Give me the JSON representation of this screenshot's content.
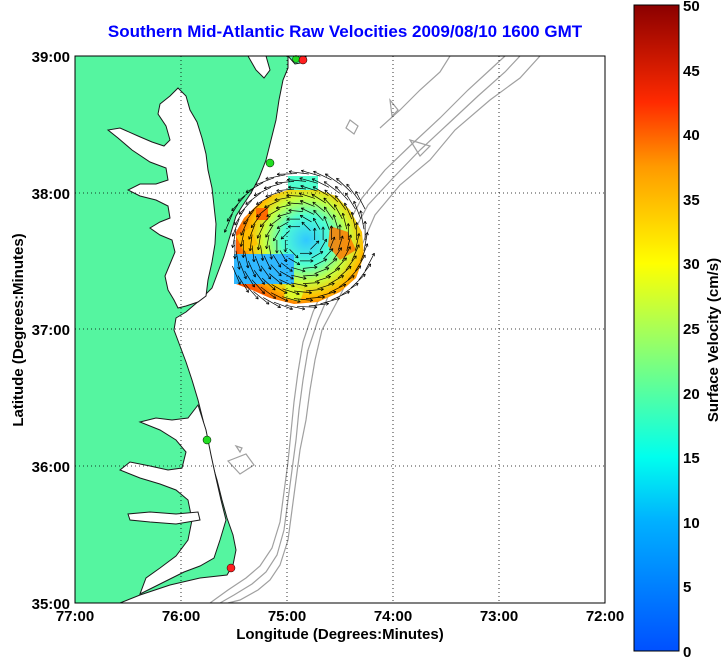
{
  "title": "Southern Mid-Atlantic Raw Velocities 2009/08/10 1600 GMT",
  "x_axis": {
    "label": "Longitude (Degrees:Minutes)",
    "ticks": [
      "77:00",
      "76:00",
      "75:00",
      "74:00",
      "73:00",
      "72:00"
    ]
  },
  "y_axis": {
    "label": "Latitude (Degrees:Minutes)",
    "ticks": [
      "39:00",
      "38:00",
      "37:00",
      "36:00",
      "35:00"
    ]
  },
  "colorbar": {
    "label": "Surface Velocity (cm/s)",
    "ticks": [
      "50",
      "45",
      "40",
      "35",
      "30",
      "25",
      "20",
      "15",
      "10",
      "5",
      "0"
    ],
    "min": 0,
    "max": 50
  },
  "colors": {
    "land": "#55f5a0",
    "water": "#ffffff",
    "bathymetry": "#a0a0a0",
    "title": "#0000ff",
    "station_green": "#22dd22",
    "station_red": "#ff2020"
  }
}
